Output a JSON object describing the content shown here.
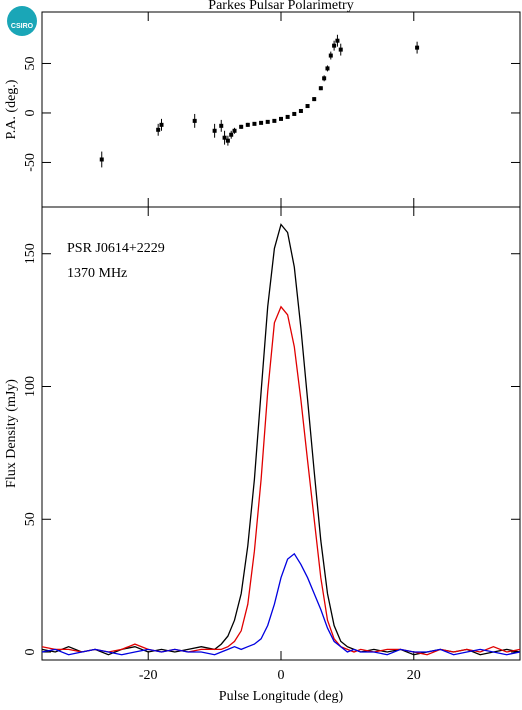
{
  "logo": "CSIRO",
  "chart_data": [
    {
      "type": "scatter",
      "title": "Parkes Pulsar Polarimetry",
      "ylabel": "P.A. (deg.)",
      "x": [
        -27,
        -18.5,
        -18,
        -13,
        -10,
        -9,
        -8.5,
        -8,
        -7.5,
        -7,
        -6,
        -5,
        -4,
        -3,
        -2,
        -1,
        0,
        1,
        2,
        3,
        4,
        5,
        6,
        6.5,
        7,
        7.5,
        8,
        8.5,
        9,
        20.5
      ],
      "values": [
        -47,
        -17,
        -12,
        -8,
        -18,
        -13,
        -25,
        -28,
        -22,
        -18,
        -14,
        -12,
        -11,
        -10,
        -9,
        -8,
        -6,
        -4,
        -1,
        2,
        7,
        14,
        25,
        35,
        45,
        58,
        68,
        73,
        64,
        66
      ],
      "errors": [
        8,
        6,
        6,
        7,
        7,
        6,
        7,
        5,
        4,
        3,
        2,
        2,
        1,
        1,
        1,
        1,
        1,
        1,
        1,
        1,
        1,
        2,
        2,
        3,
        3,
        4,
        5,
        6,
        6,
        6
      ],
      "color": "#000000",
      "xlim": [
        -36,
        36
      ],
      "xticks": [
        -20,
        0,
        20
      ],
      "ylim": [
        -95,
        102
      ],
      "yticks": [
        -50,
        0,
        50
      ]
    },
    {
      "type": "line",
      "xlabel": "Pulse Longitude (deg)",
      "ylabel": "Flux Density (mJy)",
      "annotations": [
        "PSR J0614+2229",
        "1370 MHz"
      ],
      "x": [
        -36,
        -34,
        -32,
        -30,
        -28,
        -26,
        -24,
        -22,
        -20,
        -18,
        -16,
        -14,
        -12,
        -10,
        -9,
        -8,
        -7,
        -6,
        -5,
        -4,
        -3,
        -2,
        -1,
        0,
        1,
        2,
        3,
        4,
        5,
        6,
        7,
        8,
        9,
        10,
        11,
        12,
        14,
        16,
        18,
        20,
        22,
        24,
        26,
        28,
        30,
        32,
        34,
        36
      ],
      "series": [
        {
          "color": "#000000",
          "values": [
            1,
            0,
            2,
            0,
            1,
            -1,
            1,
            2,
            0,
            1,
            0,
            1,
            2,
            1,
            3,
            6,
            12,
            22,
            40,
            65,
            98,
            130,
            152,
            161,
            158,
            145,
            122,
            95,
            68,
            42,
            22,
            10,
            4,
            2,
            1,
            0,
            1,
            0,
            1,
            -1,
            0,
            1,
            0,
            1,
            -1,
            0,
            1,
            0
          ]
        },
        {
          "color": "#e00000",
          "values": [
            2,
            1,
            1,
            0,
            1,
            0,
            1,
            3,
            1,
            0,
            1,
            0,
            1,
            1,
            1,
            2,
            4,
            8,
            18,
            38,
            65,
            98,
            124,
            130,
            127,
            115,
            95,
            72,
            50,
            28,
            12,
            5,
            2,
            1,
            0,
            1,
            0,
            1,
            1,
            0,
            -1,
            1,
            0,
            1,
            0,
            2,
            0,
            1
          ]
        },
        {
          "color": "#0000e0",
          "values": [
            0,
            1,
            -1,
            0,
            1,
            0,
            -1,
            0,
            1,
            0,
            1,
            0,
            0,
            -1,
            0,
            1,
            2,
            1,
            2,
            3,
            5,
            10,
            18,
            28,
            35,
            37,
            33,
            28,
            22,
            16,
            9,
            4,
            2,
            0,
            1,
            0,
            0,
            -1,
            1,
            0,
            0,
            1,
            -1,
            0,
            1,
            0,
            -1,
            0
          ]
        }
      ],
      "xlim": [
        -36,
        36
      ],
      "xticks": [
        -20,
        0,
        20
      ],
      "ylim": [
        -3,
        167.6
      ],
      "yticks": [
        0,
        50,
        100,
        150
      ]
    }
  ]
}
